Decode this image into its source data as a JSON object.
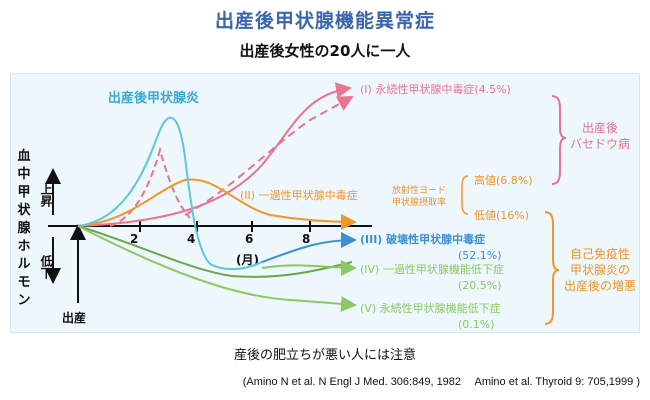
{
  "title": "出産後甲状腺機能異常症",
  "subtitle": "出産後女性の20人に一人",
  "y_axis": {
    "label_chars": [
      "血",
      "中",
      "甲",
      "状",
      "腺",
      "ホ",
      "ル",
      "モ",
      "ン"
    ],
    "up": "上昇",
    "down": "低下"
  },
  "x_axis": {
    "ticks": [
      "2",
      "4",
      "6",
      "8"
    ],
    "unit": "(月)",
    "origin_label": "出産"
  },
  "ppt_label": "出産後甲状腺炎",
  "ppt_peaks": {
    "high": "高値(6.8%)",
    "low": "低値(16%)",
    "iodine": "放射性ヨード",
    "uptake": "甲状腺摂取率"
  },
  "outcomes": [
    {
      "id": "I",
      "label": "(I) 永続性甲状腺中毒症(4.5%)",
      "color": "#e8748f"
    },
    {
      "id": "II",
      "label": "(II) 一過性甲状腺中毒症",
      "color": "#f0962a"
    },
    {
      "id": "III",
      "label": "(III) 破壊性甲状腺中毒症",
      "pct": "(52.1%)",
      "color": "#3d8fd4"
    },
    {
      "id": "IV",
      "label": "(IV) 一過性甲状腺機能低下症",
      "pct": "(20.5%)",
      "color": "#8cc864"
    },
    {
      "id": "V",
      "label": "(V) 永続性甲状腺機能低下症",
      "pct": "(0.1%)",
      "color": "#8cc864"
    }
  ],
  "bracket_graves": {
    "line1": "出産後",
    "line2": "バセドウ病"
  },
  "bracket_autoimmune": {
    "line1": "自己免疫性",
    "line2": "甲状腺炎の",
    "line3": "出産後の増悪"
  },
  "note": "産後の肥立ちが悪い人には注意",
  "reference": "(Amino N et al. N Engl J Med. 306:849, 1982　 Amino et al. Thyroid 9: 705,1999 )",
  "colors": {
    "title": "#3a66b0",
    "cyan": "#5bc6dc",
    "pink": "#e8748f",
    "orange": "#f0962a",
    "green": "#6aa84f",
    "blue": "#3d8fd4",
    "lightgreen": "#8cc864"
  }
}
